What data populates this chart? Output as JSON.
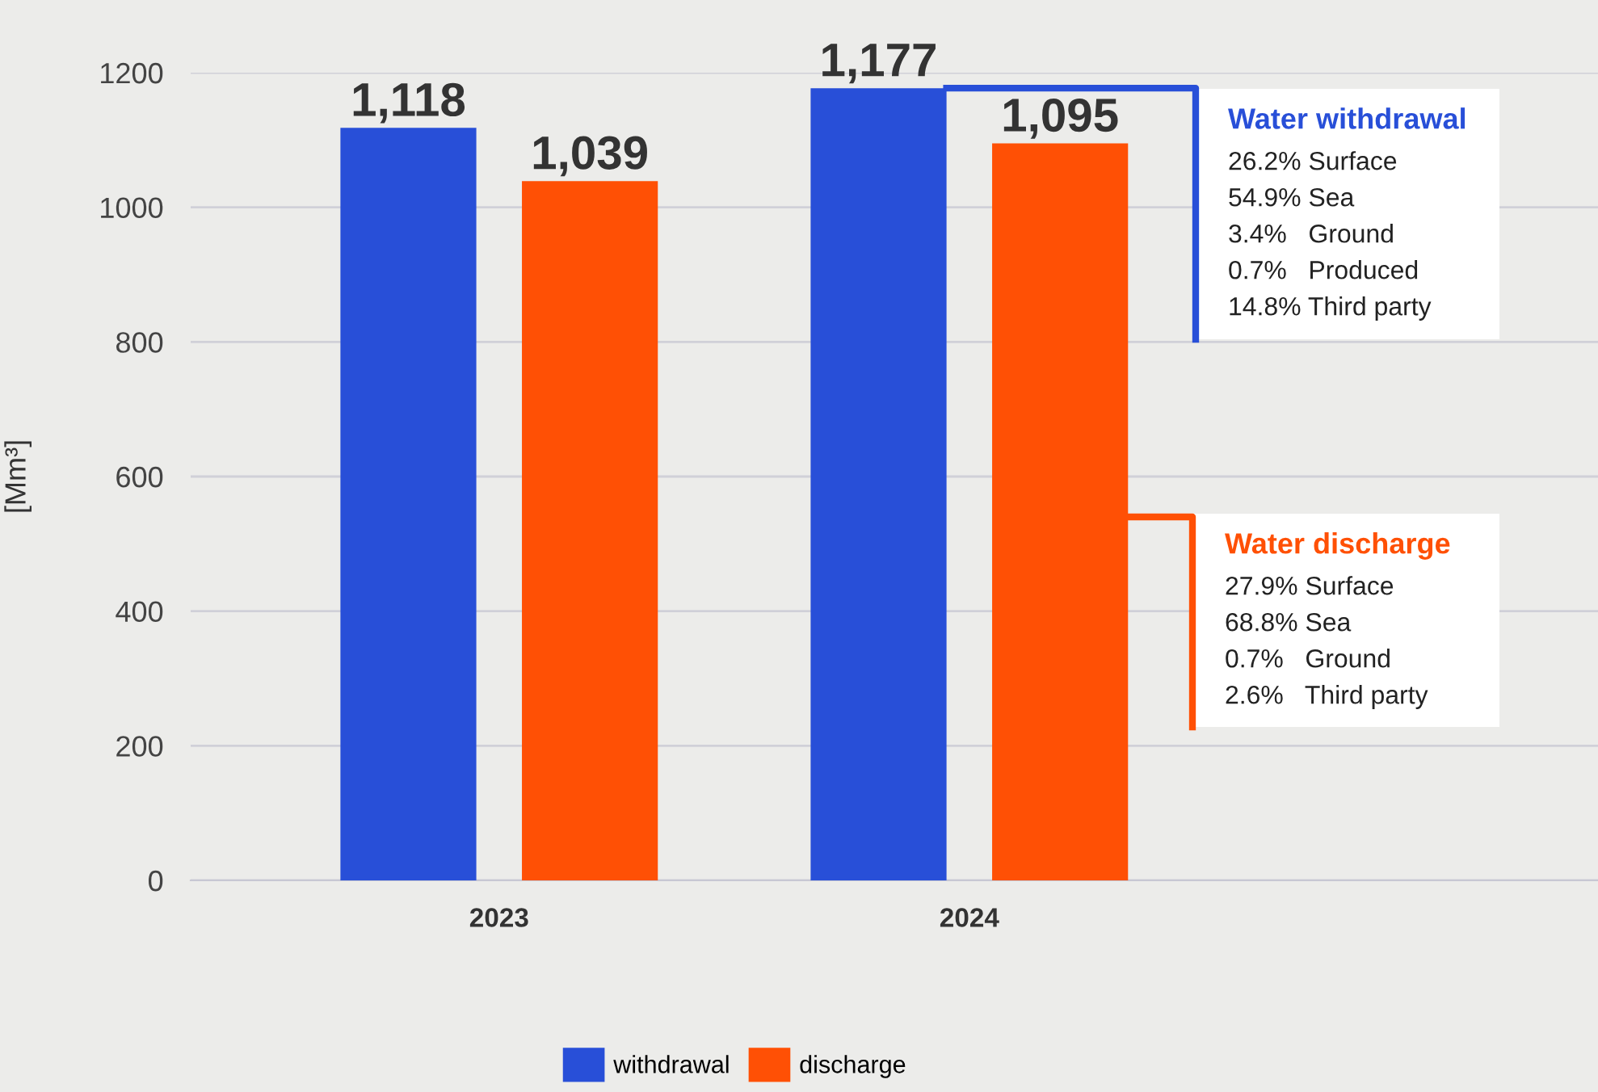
{
  "chart_data": {
    "type": "bar",
    "categories": [
      "2023",
      "2024"
    ],
    "series": [
      {
        "name": "withdrawal",
        "color": "#284fd8",
        "values": [
          1118,
          1177
        ],
        "value_labels": [
          "1,118",
          "1,177"
        ]
      },
      {
        "name": "discharge",
        "color": "#ff5005",
        "values": [
          1039,
          1095
        ],
        "value_labels": [
          "1,039",
          "1,095"
        ]
      }
    ],
    "ylabel": "[Mm³]",
    "ylim": [
      0,
      1200
    ],
    "yticks": [
      0,
      200,
      400,
      600,
      800,
      1000,
      1200
    ],
    "grid": "y",
    "legend": "bottom",
    "annotations": [
      "Water withdrawal",
      "26.2% Surface",
      "54.9% Sea",
      "3.4%   Ground",
      "0.7%   Produced",
      "14.8% Third party",
      "Water discharge",
      "27.9% Surface",
      "68.8% Sea",
      "0.7%   Ground",
      "2.6%   Third party"
    ]
  }
}
